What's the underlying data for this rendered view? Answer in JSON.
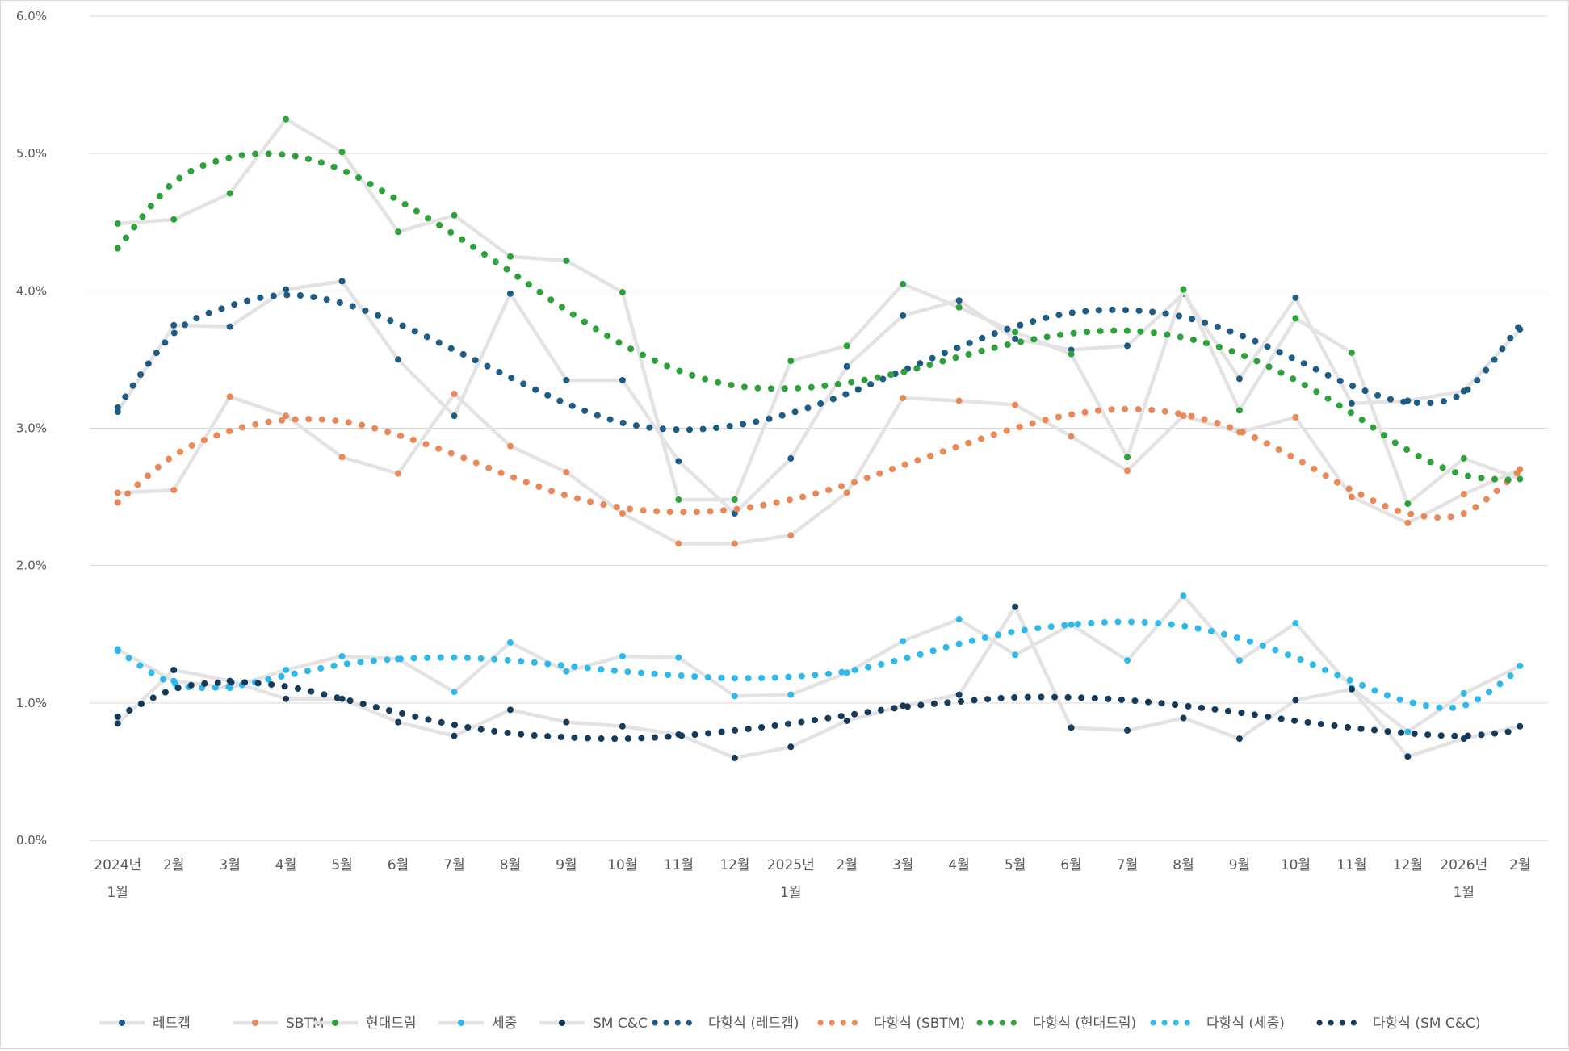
{
  "chart_data": {
    "type": "line",
    "title": "",
    "xlabel": "",
    "ylabel": "",
    "ylim": [
      0,
      6
    ],
    "yticks": [
      0,
      1,
      2,
      3,
      4,
      5,
      6
    ],
    "ytick_labels": [
      "0.0%",
      "1.0%",
      "2.0%",
      "3.0%",
      "4.0%",
      "5.0%",
      "6.0%"
    ],
    "grid": true,
    "legend_position": "bottom",
    "categories": [
      [
        "2024년",
        "1월"
      ],
      [
        "2월"
      ],
      [
        "3월"
      ],
      [
        "4월"
      ],
      [
        "5월"
      ],
      [
        "6월"
      ],
      [
        "7월"
      ],
      [
        "8월"
      ],
      [
        "9월"
      ],
      [
        "10월"
      ],
      [
        "11월"
      ],
      [
        "12월"
      ],
      [
        "2025년",
        "1월"
      ],
      [
        "2월"
      ],
      [
        "3월"
      ],
      [
        "4월"
      ],
      [
        "5월"
      ],
      [
        "6월"
      ],
      [
        "7월"
      ],
      [
        "8월"
      ],
      [
        "9월"
      ],
      [
        "10월"
      ],
      [
        "11월"
      ],
      [
        "12월"
      ],
      [
        "2026년",
        "1월"
      ],
      [
        "2월"
      ]
    ],
    "series": [
      {
        "name": "레드캡",
        "color": "#1f5c84",
        "values": [
          3.12,
          3.75,
          3.74,
          4.01,
          4.07,
          3.5,
          3.09,
          3.98,
          3.35,
          3.35,
          2.76,
          2.38,
          2.78,
          3.45,
          3.82,
          3.93,
          3.65,
          3.57,
          3.6,
          3.98,
          3.36,
          3.95,
          3.18,
          3.2,
          3.27,
          3.72
        ]
      },
      {
        "name": "SBTM",
        "color": "#e8895a",
        "values": [
          2.53,
          2.55,
          3.23,
          3.09,
          2.79,
          2.67,
          3.25,
          2.87,
          2.68,
          2.38,
          2.16,
          2.16,
          2.22,
          2.53,
          3.22,
          3.2,
          3.17,
          2.94,
          2.69,
          3.09,
          2.97,
          3.08,
          2.5,
          2.31,
          2.52,
          2.7
        ]
      },
      {
        "name": "현대드림",
        "color": "#2ea03c",
        "values": [
          4.49,
          4.52,
          4.71,
          5.25,
          5.01,
          4.43,
          4.55,
          4.25,
          4.22,
          3.99,
          2.48,
          2.48,
          3.49,
          3.6,
          4.05,
          3.88,
          3.7,
          3.54,
          2.79,
          4.01,
          3.13,
          3.8,
          3.55,
          2.45,
          2.78,
          2.63
        ]
      },
      {
        "name": "세중",
        "color": "#2fb8e8",
        "values": [
          1.39,
          1.16,
          1.11,
          1.24,
          1.34,
          1.32,
          1.08,
          1.44,
          1.23,
          1.34,
          1.33,
          1.05,
          1.06,
          1.22,
          1.45,
          1.61,
          1.35,
          1.57,
          1.31,
          1.78,
          1.31,
          1.58,
          1.11,
          0.79,
          1.07,
          1.27
        ]
      },
      {
        "name": "SM C&C",
        "color": "#163a5a",
        "values": [
          0.85,
          1.24,
          1.16,
          1.03,
          1.03,
          0.86,
          0.76,
          0.95,
          0.86,
          0.83,
          0.77,
          0.6,
          0.68,
          0.87,
          0.98,
          1.06,
          1.7,
          0.82,
          0.8,
          0.89,
          0.74,
          1.02,
          1.1,
          0.61,
          0.74,
          0.83
        ]
      }
    ],
    "trendlines": [
      {
        "name": "다항식 (레드캡)",
        "color": "#1f5c84",
        "type": "polynomial",
        "values": [
          3.15,
          3.69,
          3.89,
          3.97,
          3.91,
          3.76,
          3.57,
          3.37,
          3.18,
          3.04,
          2.99,
          3.02,
          3.11,
          3.25,
          3.42,
          3.59,
          3.74,
          3.84,
          3.86,
          3.81,
          3.68,
          3.5,
          3.31,
          3.19,
          3.26,
          3.75
        ]
      },
      {
        "name": "다항식 (SBTM)",
        "color": "#e8895a",
        "type": "polynomial",
        "values": [
          2.46,
          2.8,
          2.98,
          3.06,
          3.05,
          2.95,
          2.81,
          2.65,
          2.51,
          2.42,
          2.39,
          2.41,
          2.48,
          2.59,
          2.73,
          2.87,
          3.0,
          3.1,
          3.14,
          3.1,
          2.98,
          2.78,
          2.55,
          2.38,
          2.38,
          2.69
        ]
      },
      {
        "name": "다항식 (현대드림)",
        "color": "#2ea03c",
        "type": "polynomial",
        "values": [
          4.31,
          4.79,
          4.97,
          4.99,
          4.88,
          4.66,
          4.41,
          4.14,
          3.86,
          3.61,
          3.42,
          3.31,
          3.29,
          3.33,
          3.41,
          3.52,
          3.62,
          3.69,
          3.71,
          3.66,
          3.54,
          3.35,
          3.11,
          2.84,
          2.66,
          2.62
        ]
      },
      {
        "name": "다항식 (세중)",
        "color": "#2fb8e8",
        "type": "polynomial",
        "values": [
          1.38,
          1.14,
          1.12,
          1.2,
          1.28,
          1.32,
          1.33,
          1.31,
          1.27,
          1.23,
          1.2,
          1.18,
          1.19,
          1.23,
          1.32,
          1.43,
          1.52,
          1.57,
          1.59,
          1.56,
          1.47,
          1.33,
          1.16,
          1.01,
          0.98,
          1.25
        ]
      },
      {
        "name": "다항식 (SM C&C)",
        "color": "#163a5a",
        "type": "polynomial",
        "values": [
          0.9,
          1.1,
          1.15,
          1.12,
          1.03,
          0.93,
          0.84,
          0.78,
          0.75,
          0.74,
          0.76,
          0.8,
          0.85,
          0.91,
          0.97,
          1.01,
          1.04,
          1.04,
          1.02,
          0.98,
          0.93,
          0.87,
          0.82,
          0.78,
          0.76,
          0.8
        ]
      }
    ]
  }
}
